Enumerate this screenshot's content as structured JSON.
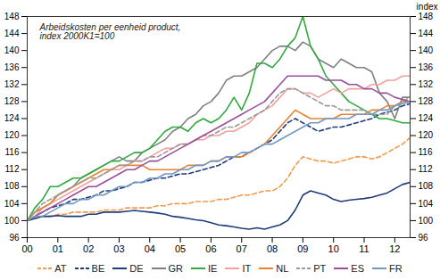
{
  "chart_data": {
    "type": "line",
    "title": "Arbeidskosten per eenheid product,\nindex 2000K1=100",
    "ylabel": "index",
    "x": [
      2000,
      2000.25,
      2000.5,
      2000.75,
      2001,
      2001.25,
      2001.5,
      2001.75,
      2002,
      2002.25,
      2002.5,
      2002.75,
      2003,
      2003.25,
      2003.5,
      2003.75,
      2004,
      2004.25,
      2004.5,
      2004.75,
      2005,
      2005.25,
      2005.5,
      2005.75,
      2006,
      2006.25,
      2006.5,
      2006.75,
      2007,
      2007.25,
      2007.5,
      2007.75,
      2008,
      2008.25,
      2008.5,
      2008.75,
      2009,
      2009.25,
      2009.5,
      2009.75,
      2010,
      2010.25,
      2010.5,
      2010.75,
      2011,
      2011.25,
      2011.5,
      2011.75,
      2012,
      2012.25,
      2012.5
    ],
    "xlim": [
      2000,
      2012.5
    ],
    "xticks": [
      {
        "value": 2000,
        "label": "00"
      },
      {
        "value": 2001,
        "label": "01"
      },
      {
        "value": 2002,
        "label": "02"
      },
      {
        "value": 2003,
        "label": "03"
      },
      {
        "value": 2004,
        "label": "04"
      },
      {
        "value": 2005,
        "label": "05"
      },
      {
        "value": 2006,
        "label": "06"
      },
      {
        "value": 2007,
        "label": "07"
      },
      {
        "value": 2008,
        "label": "08"
      },
      {
        "value": 2009,
        "label": "09"
      },
      {
        "value": 2010,
        "label": "10"
      },
      {
        "value": 2011,
        "label": "11"
      },
      {
        "value": 2012,
        "label": "12"
      }
    ],
    "ylim": [
      96,
      148
    ],
    "yticks": [
      96,
      100,
      104,
      108,
      112,
      116,
      120,
      124,
      128,
      132,
      136,
      140,
      144,
      148
    ],
    "grid": false,
    "legend": "bottom",
    "series": [
      {
        "name": "AT",
        "color": "#f39a4d",
        "line_style": "dashed",
        "values": [
          100,
          100.5,
          101,
          101,
          101.5,
          101.5,
          102,
          102,
          102,
          102,
          102.5,
          102.5,
          102.5,
          103,
          103,
          103,
          103,
          103.5,
          103.5,
          104,
          104,
          104,
          104.5,
          104.5,
          104.5,
          105,
          105,
          105.5,
          106,
          106,
          106.5,
          107,
          107,
          108,
          110,
          113,
          115,
          114.5,
          114,
          114,
          113.5,
          114,
          114.5,
          115,
          115,
          114.5,
          115,
          116,
          117,
          118,
          119.5
        ]
      },
      {
        "name": "BE",
        "color": "#1f3b7a",
        "line_style": "dashed",
        "values": [
          100,
          101,
          102,
          103,
          103.5,
          104,
          105,
          105,
          105.5,
          106,
          107,
          107,
          107.5,
          108,
          109,
          109,
          109.5,
          110,
          110,
          110.5,
          111,
          111,
          111.5,
          112,
          112.5,
          113,
          114,
          115,
          115,
          116,
          117,
          118,
          119,
          121,
          123,
          124,
          123,
          122,
          121,
          121.5,
          122,
          122,
          122.5,
          123,
          123.5,
          124,
          125,
          125.5,
          126,
          127,
          127.5
        ]
      },
      {
        "name": "DE",
        "color": "#1f3b7a",
        "line_style": "solid",
        "values": [
          100,
          100.5,
          101,
          101,
          101.2,
          101,
          101,
          101,
          101.5,
          101.5,
          102,
          102,
          102,
          102.2,
          102.4,
          102.2,
          102,
          101.8,
          101.5,
          101,
          100.8,
          100.5,
          100.2,
          100,
          99.5,
          99,
          98.8,
          98.5,
          98.2,
          98,
          98.3,
          98,
          98.5,
          99,
          100,
          102.5,
          106,
          107,
          106.5,
          106,
          105,
          104.5,
          104.8,
          105,
          105.2,
          105.5,
          106,
          106.5,
          107.5,
          108.5,
          109
        ]
      },
      {
        "name": "GR",
        "color": "#808080",
        "line_style": "solid",
        "values": [
          100,
          102,
          103,
          104,
          106,
          107,
          108,
          110,
          111,
          112,
          113,
          114,
          115,
          114,
          114,
          116,
          117,
          118,
          119,
          121,
          122,
          124,
          125,
          127,
          128,
          130,
          133,
          134,
          134,
          135,
          136,
          138,
          140,
          141,
          141,
          140,
          142,
          141,
          138,
          137,
          136,
          138,
          137,
          136,
          136,
          135,
          130,
          128,
          124,
          129,
          129
        ]
      },
      {
        "name": "IE",
        "color": "#2eaa3e",
        "line_style": "solid",
        "values": [
          100,
          103,
          105,
          108,
          108,
          109,
          110,
          110,
          111,
          112,
          113,
          114,
          114,
          115,
          116,
          116,
          117,
          119,
          121,
          122,
          122,
          121,
          123,
          124,
          123,
          124,
          126,
          129,
          126,
          130,
          137,
          137,
          136,
          138,
          141,
          143,
          148,
          141,
          138,
          134,
          132,
          130,
          128,
          127,
          126,
          125,
          124,
          124,
          123.5,
          123,
          123
        ]
      },
      {
        "name": "IT",
        "color": "#f4a09c",
        "line_style": "solid",
        "values": [
          100,
          101,
          103,
          104,
          105,
          106,
          107,
          108,
          109,
          110,
          111,
          112,
          112,
          113,
          114,
          114,
          115,
          116,
          117,
          117,
          118,
          118,
          119,
          119,
          120,
          120,
          121,
          121,
          122,
          123,
          125,
          126,
          127,
          129,
          131,
          131,
          130,
          130,
          129,
          130,
          131,
          130,
          131,
          131,
          131,
          132,
          132,
          133,
          133,
          134,
          134
        ]
      },
      {
        "name": "NL",
        "color": "#e9822d",
        "line_style": "solid",
        "values": [
          100,
          102,
          103,
          104,
          106,
          107,
          108,
          109,
          110,
          111,
          112,
          112,
          113,
          113,
          113,
          113,
          112,
          112,
          112,
          112,
          112,
          113,
          113,
          113,
          114,
          114,
          115,
          115,
          115,
          116,
          117,
          118,
          120,
          122,
          124,
          126,
          125,
          124,
          124,
          124,
          124,
          125,
          125,
          125,
          125,
          126,
          126,
          127,
          127,
          128,
          128
        ]
      },
      {
        "name": "PT",
        "color": "#9a9a9a",
        "line_style": "dashed",
        "values": [
          100,
          102,
          104,
          105,
          106,
          107,
          108,
          109,
          110,
          110,
          111,
          112,
          113,
          113,
          114,
          114,
          115,
          115,
          116,
          117,
          118,
          118,
          119,
          120,
          120,
          121,
          122,
          122,
          123,
          124,
          125,
          126,
          128,
          130,
          131,
          131,
          130,
          129,
          128,
          127,
          127,
          126,
          126,
          126,
          126,
          125,
          125,
          125,
          127,
          128,
          129
        ]
      },
      {
        "name": "ES",
        "color": "#9b4f9b",
        "line_style": "solid",
        "values": [
          100,
          101,
          102,
          103,
          104,
          105,
          106,
          107,
          108,
          108,
          109,
          110,
          111,
          112,
          112,
          113,
          114,
          114,
          115,
          116,
          117,
          118,
          119,
          120,
          121,
          122,
          123,
          124,
          125,
          126,
          127,
          128,
          130,
          132,
          134,
          134,
          134,
          134,
          134,
          133,
          133,
          133,
          132,
          132,
          131,
          131,
          130,
          130,
          129,
          128.5,
          128
        ]
      },
      {
        "name": "FR",
        "color": "#6f98c8",
        "line_style": "solid",
        "values": [
          100,
          101,
          101,
          102,
          103,
          104,
          104,
          105,
          105,
          106,
          106,
          107,
          108,
          108,
          109,
          109,
          110,
          110,
          111,
          111,
          112,
          112,
          113,
          113,
          114,
          114,
          115,
          115,
          116,
          116,
          117,
          118,
          118,
          119,
          120,
          121,
          122,
          123,
          123,
          124,
          124,
          124,
          124,
          125,
          125,
          125,
          126,
          126,
          127,
          127.5,
          128
        ]
      }
    ]
  }
}
